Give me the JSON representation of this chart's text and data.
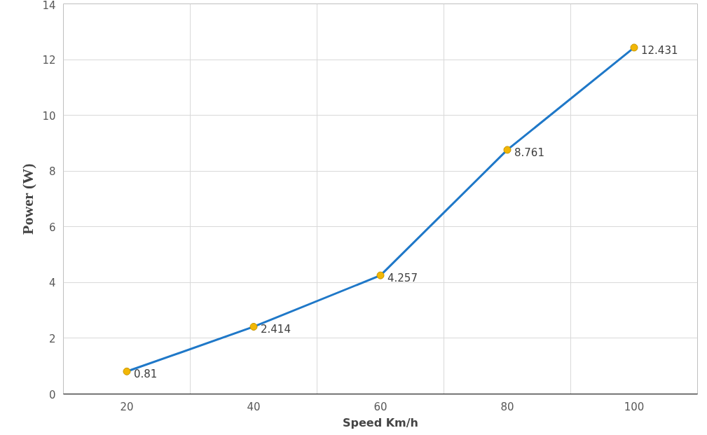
{
  "chart_data": {
    "type": "line",
    "xlabel": "Speed Km/h",
    "ylabel": "Power (W)",
    "categories": [
      "20",
      "40",
      "60",
      "80",
      "100"
    ],
    "series": [
      {
        "color": "#1f78c8",
        "colors": [
          "#f2b705",
          "#f2b705",
          "#f2b705",
          "#f2b705",
          "#f2b705"
        ],
        "values": [
          0.81,
          2.414,
          4.257,
          8.761,
          12.431
        ]
      }
    ],
    "ylim": [
      0,
      14
    ],
    "yticks": [
      0,
      2,
      4,
      6,
      8,
      10,
      12,
      14
    ],
    "grid": true,
    "marker": "circle",
    "line_style": "solid",
    "data_labels": true
  }
}
